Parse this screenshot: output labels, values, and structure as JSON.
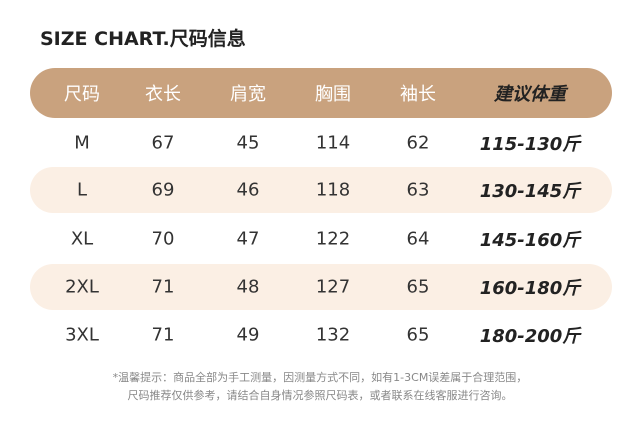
{
  "header": {
    "title": "SIZE CHART.尺码信息"
  },
  "table": {
    "columns": [
      "尺码",
      "衣长",
      "肩宽",
      "胸围",
      "袖长",
      "建议体重"
    ],
    "rows": [
      [
        "M",
        67,
        45,
        114,
        62,
        "115-130斤"
      ],
      [
        "L",
        69,
        46,
        118,
        63,
        "130-145斤"
      ],
      [
        "XL",
        70,
        47,
        122,
        64,
        "145-160斤"
      ],
      [
        "2XL",
        71,
        48,
        127,
        65,
        "160-180斤"
      ],
      [
        "3XL",
        71,
        49,
        132,
        65,
        "180-200斤"
      ]
    ]
  },
  "note": [
    "*温馨提示：商品全部为手工测量，因测量方式不同，如有1-3CM误差属于合理范围，",
    "尺码推荐仅供参考，请结合自身情况参照尺码表，或者联系在线客服进行咨询。"
  ]
}
